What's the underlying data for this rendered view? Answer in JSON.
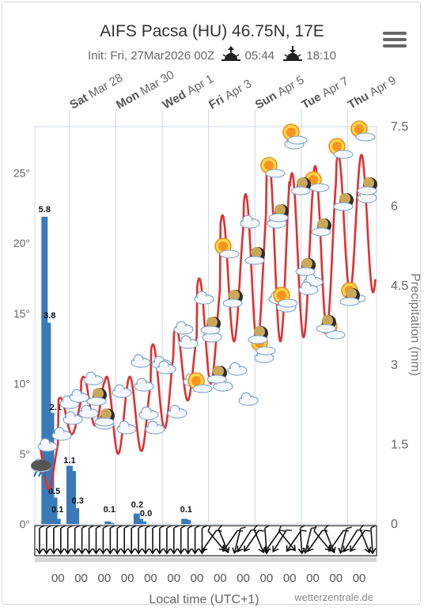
{
  "header": {
    "title": "AIFS Pacsa (HU) 46.75N, 17E",
    "init_label": "Init: Fri, 27Mar2026 00Z",
    "sunrise": "05:44",
    "sunset": "18:10",
    "menu_icon": "hamburger-menu-icon"
  },
  "footer": {
    "xlabel": "Local time (UTC+1)",
    "credit": "wetterzentrale.de"
  },
  "colors": {
    "temperature": "#e03030",
    "precipitation": "#3a7ab8",
    "grid": "#cfd8e6"
  },
  "chart_data": {
    "type": "line",
    "top_axis_labels": [
      {
        "day": "Sat",
        "date": "Mar 28",
        "x": 1
      },
      {
        "day": "Mon",
        "date": "Mar 30",
        "x": 3
      },
      {
        "day": "Wed",
        "date": "Apr 1",
        "x": 5
      },
      {
        "day": "Fri",
        "date": "Apr 3",
        "x": 7
      },
      {
        "day": "Sun",
        "date": "Apr 5",
        "x": 9
      },
      {
        "day": "Tue",
        "date": "Apr 7",
        "x": 11
      },
      {
        "day": "Thu",
        "date": "Apr 9",
        "x": 13
      }
    ],
    "bottom_tick_labels": [
      "00",
      "00",
      "00",
      "00",
      "00",
      "00",
      "00",
      "00",
      "00",
      "00",
      "00",
      "00",
      "00",
      "00"
    ],
    "bottom_tick_x": [
      0.5,
      1.5,
      2.5,
      3.5,
      4.5,
      5.5,
      6.5,
      7.5,
      8.5,
      9.5,
      10.5,
      11.5,
      12.5,
      13.5
    ],
    "x_range": [
      -0.5,
      14.25
    ],
    "y_left": {
      "label": "",
      "ticks": [
        "0°",
        "5°",
        "10°",
        "15°",
        "20°",
        "25°"
      ],
      "values": [
        0,
        5,
        10,
        15,
        20,
        25
      ],
      "range": [
        0,
        28.3
      ]
    },
    "y_right": {
      "label": "Precipitation (mm)",
      "ticks": [
        "0",
        "1.5",
        "3",
        "4.5",
        "6",
        "7.5"
      ],
      "values": [
        0,
        1.5,
        3,
        4.5,
        6,
        7.5
      ],
      "range": [
        0,
        7.5
      ]
    },
    "temperature_series": {
      "name": "",
      "daily_min": [
        2.5,
        6.4,
        7.0,
        5.0,
        5.2,
        6.8,
        8.8,
        10.0,
        13.0,
        12.8,
        13.0,
        13.3,
        14.0,
        16.5
      ],
      "daily_max": [
        6.0,
        9.0,
        10.5,
        10.5,
        10.5,
        12.8,
        14.0,
        17.5,
        22.0,
        23.5,
        26.0,
        25.0,
        25.5,
        26.3
      ]
    },
    "precipitation_bars": [
      {
        "x": -0.08,
        "value": 5.8
      },
      {
        "x": 0.06,
        "value": 3.8
      },
      {
        "x": 0.2,
        "value": 2.1
      },
      {
        "x": 0.34,
        "value": 0.5
      },
      {
        "x": 0.48,
        "value": 0.1
      },
      {
        "x": 1.0,
        "value": 1.1
      },
      {
        "x": 1.14,
        "value": 1.0
      },
      {
        "x": 1.28,
        "value": 0.3
      },
      {
        "x": 2.65,
        "value": 0.05
      },
      {
        "x": 2.79,
        "value": 0.02
      },
      {
        "x": 3.9,
        "value": 0.2
      },
      {
        "x": 4.04,
        "value": 0.1
      },
      {
        "x": 4.18,
        "value": 0.05
      },
      {
        "x": 5.96,
        "value": 0.1
      },
      {
        "x": 6.1,
        "value": 0.08
      }
    ],
    "precipitation_labels": [
      {
        "x": -0.08,
        "text": "5.8"
      },
      {
        "x": 0.14,
        "text": "3.8"
      },
      {
        "x": 0.4,
        "text": "2.1"
      },
      {
        "x": 0.34,
        "text": "0.5"
      },
      {
        "x": 0.48,
        "text": "0.1"
      },
      {
        "x": 1.0,
        "text": "1.1"
      },
      {
        "x": 1.35,
        "text": "0.3"
      },
      {
        "x": 2.72,
        "text": "0.1"
      },
      {
        "x": 3.92,
        "text": "0.2"
      },
      {
        "x": 4.3,
        "text": "0.0"
      },
      {
        "x": 6.03,
        "text": "0.1"
      }
    ],
    "grid": true,
    "legend": "none"
  }
}
